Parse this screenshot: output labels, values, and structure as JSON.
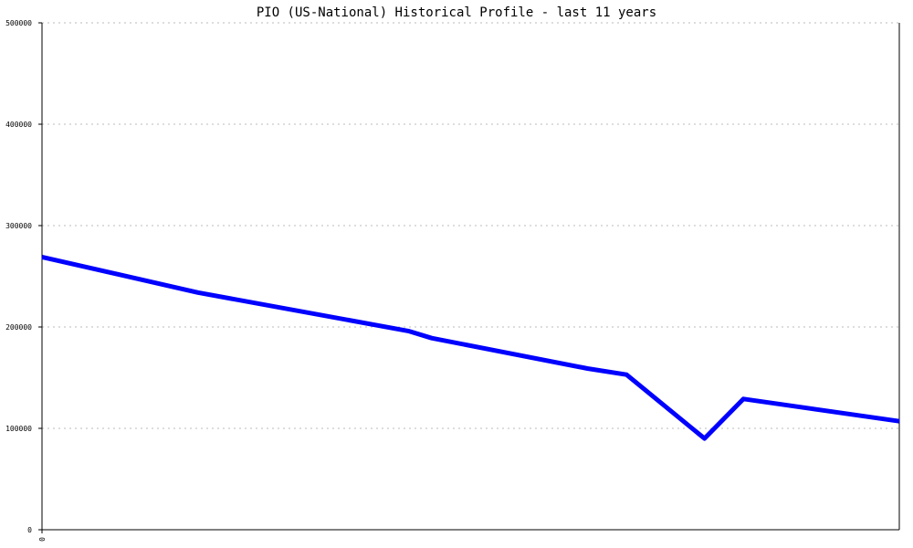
{
  "chart_data": {
    "type": "line",
    "title": "PIO (US-National) Historical Profile - last 11 years",
    "xlabel": "",
    "ylabel": "",
    "ylim": [
      0,
      500000
    ],
    "xlim": [
      0,
      11
    ],
    "yticks": [
      "0",
      "100000",
      "200000",
      "300000",
      "400000",
      "500000"
    ],
    "xticks": [
      "0"
    ],
    "grid": true,
    "series": [
      {
        "color": "#0000ff",
        "points": [
          {
            "x": 0,
            "y": 269000
          },
          {
            "x": 2,
            "y": 234000
          },
          {
            "x": 4.7,
            "y": 196000
          },
          {
            "x": 5,
            "y": 189000
          },
          {
            "x": 7,
            "y": 159000
          },
          {
            "x": 7.5,
            "y": 153000
          },
          {
            "x": 8.5,
            "y": 90000
          },
          {
            "x": 9,
            "y": 129000
          },
          {
            "x": 11,
            "y": 107000
          }
        ]
      }
    ]
  }
}
